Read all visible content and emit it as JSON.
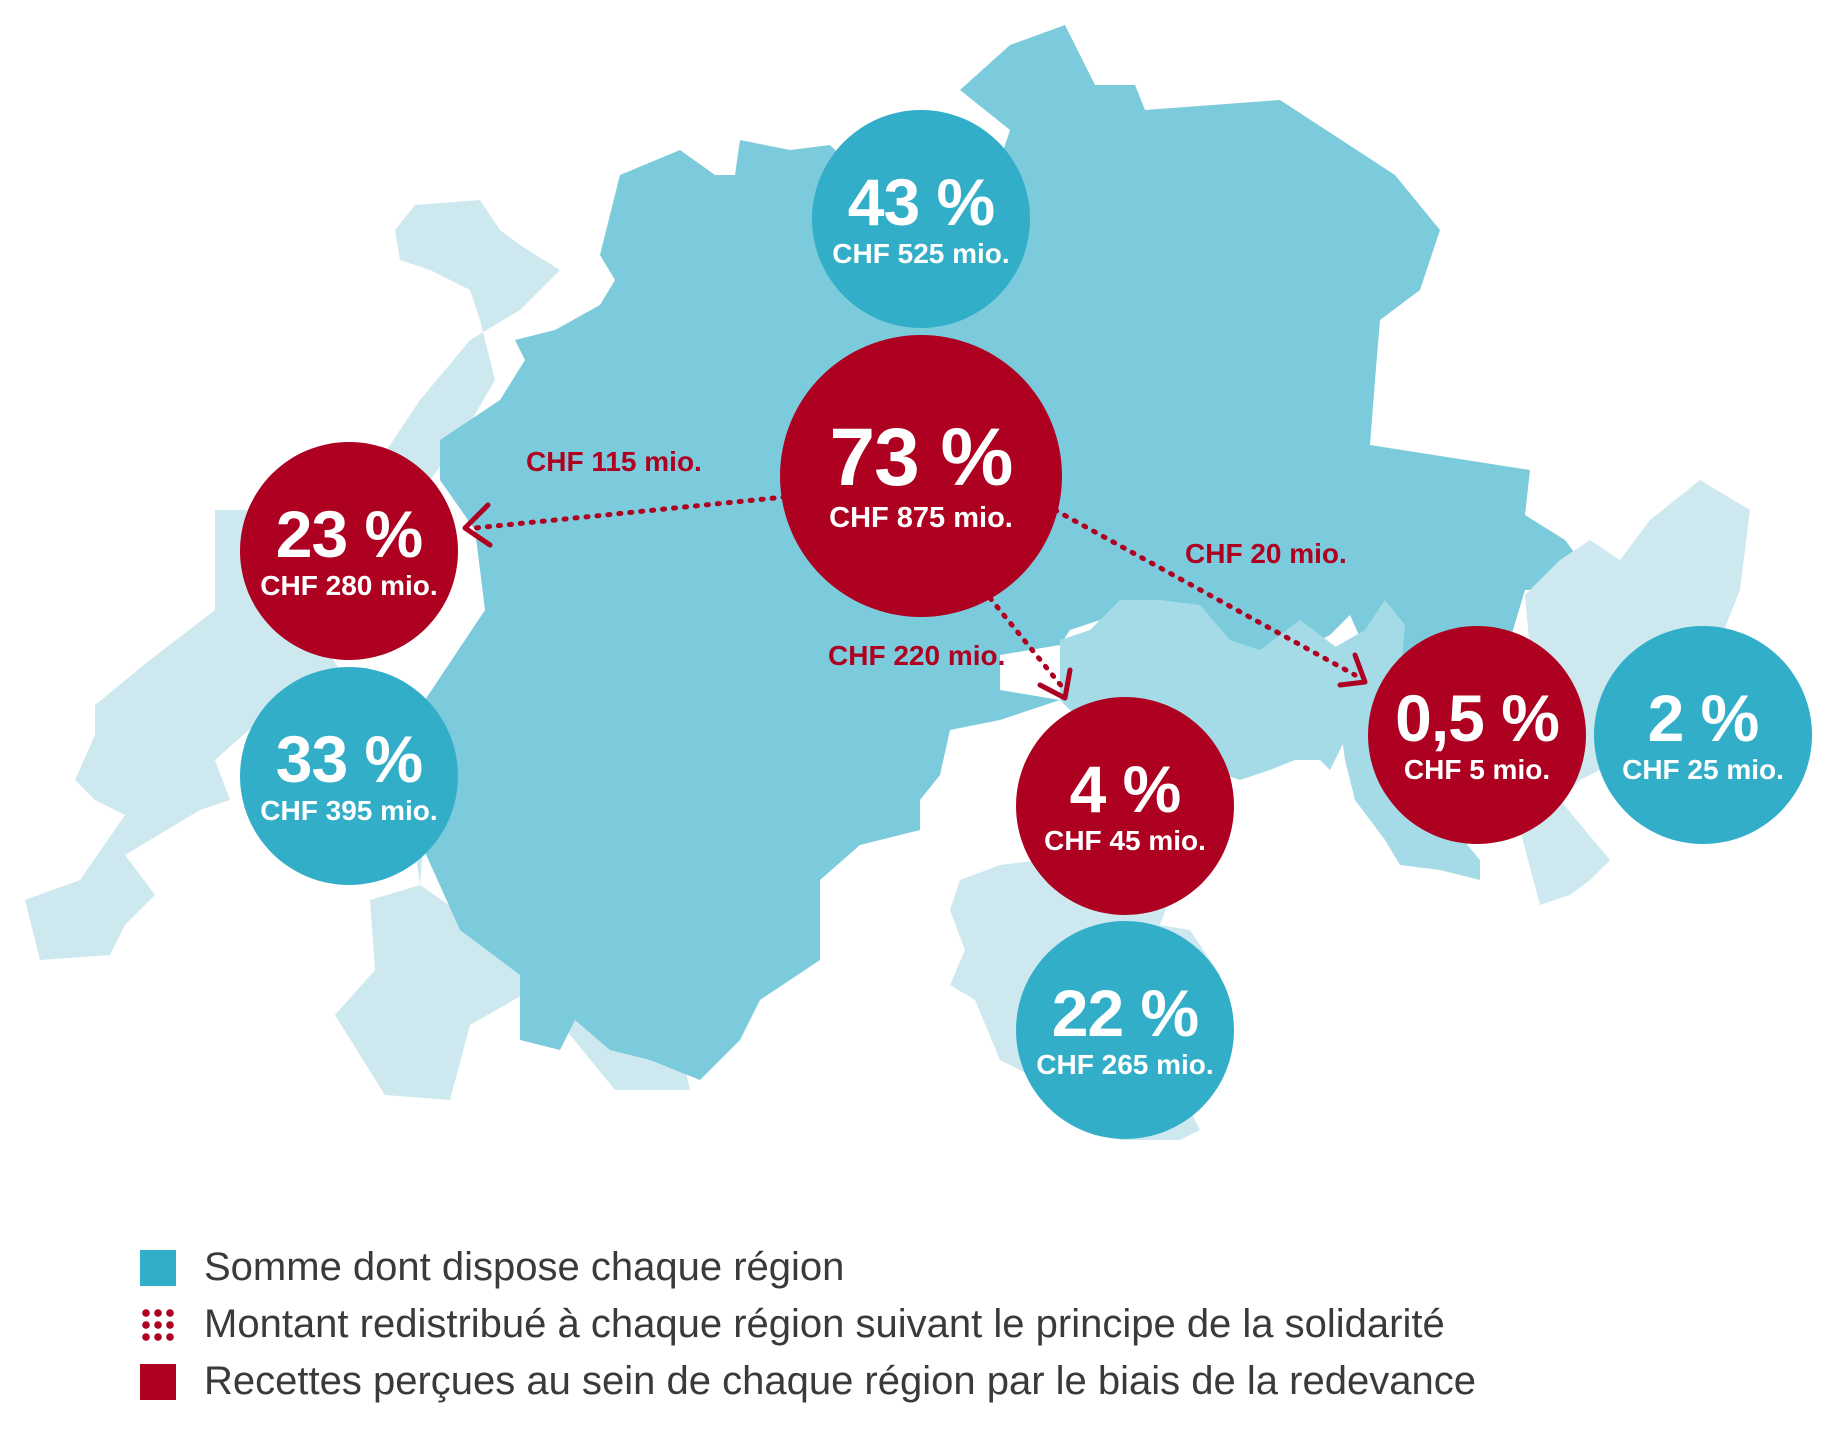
{
  "colors": {
    "available_blue": "#33aec9",
    "revenue_red": "#ae0020",
    "region_german": "#7ccbdc",
    "region_french": "#cde9ef",
    "region_italian": "#a5dbe7",
    "region_romansh": "#a5dbe7"
  },
  "regions": {
    "german": {
      "available": {
        "pct": "43 %",
        "amount": "CHF 525 mio."
      },
      "revenue": {
        "pct": "73 %",
        "amount": "CHF 875 mio."
      }
    },
    "french": {
      "revenue": {
        "pct": "23 %",
        "amount": "CHF 280 mio."
      },
      "available": {
        "pct": "33 %",
        "amount": "CHF 395 mio."
      }
    },
    "italian": {
      "revenue": {
        "pct": "4 %",
        "amount": "CHF 45 mio."
      },
      "available": {
        "pct": "22 %",
        "amount": "CHF 265 mio."
      }
    },
    "romansh": {
      "revenue": {
        "pct": "0,5 %",
        "amount": "CHF 5 mio."
      },
      "available": {
        "pct": "2 %",
        "amount": "CHF 25 mio."
      }
    }
  },
  "flows": {
    "to_french": "CHF 115 mio.",
    "to_italian": "CHF 220 mio.",
    "to_romansh": "CHF 20 mio."
  },
  "legend": {
    "available": "Somme dont dispose chaque région",
    "redistributed": "Montant redistribué à chaque région suivant le principe de la solidarité",
    "revenue": "Recettes perçues au sein de chaque région par le biais de la redevance"
  }
}
